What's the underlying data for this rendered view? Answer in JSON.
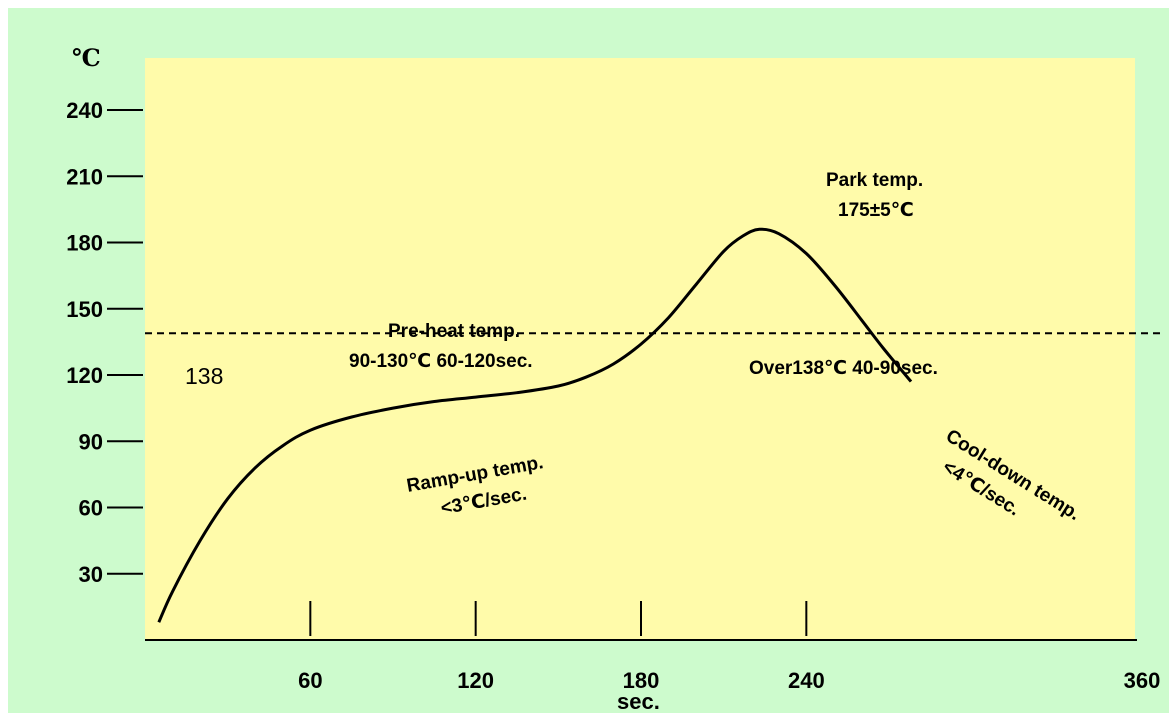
{
  "colors": {
    "page_background": "#cdfbcd",
    "plot_background": "#fffbaa",
    "curve": "#000000",
    "axis": "#000000"
  },
  "chart_data": {
    "type": "line",
    "y_unit_label": "℃",
    "xlabel": "sec.",
    "x_ticks": [
      60,
      120,
      180,
      240,
      360
    ],
    "y_ticks": [
      30,
      60,
      90,
      120,
      150,
      180,
      210,
      240
    ],
    "xlim": [
      0,
      360
    ],
    "ylim": [
      0,
      255
    ],
    "grid": false,
    "threshold_line": {
      "y": 138,
      "style": "dashed",
      "label": "138"
    },
    "series": [
      {
        "points": [
          [
            5,
            8
          ],
          [
            10,
            22
          ],
          [
            20,
            45
          ],
          [
            30,
            64
          ],
          [
            40,
            78
          ],
          [
            50,
            88
          ],
          [
            60,
            95
          ],
          [
            75,
            101
          ],
          [
            90,
            105
          ],
          [
            105,
            108
          ],
          [
            120,
            110
          ],
          [
            135,
            112
          ],
          [
            150,
            115
          ],
          [
            160,
            119
          ],
          [
            170,
            125
          ],
          [
            180,
            134
          ],
          [
            190,
            146
          ],
          [
            200,
            161
          ],
          [
            210,
            176
          ],
          [
            217,
            183
          ],
          [
            223,
            186
          ],
          [
            230,
            184
          ],
          [
            240,
            175
          ],
          [
            250,
            161
          ],
          [
            260,
            145
          ],
          [
            268,
            132
          ],
          [
            278,
            117
          ]
        ]
      }
    ],
    "annotations": {
      "preheat_title": "Pre-heat temp.",
      "preheat_detail": "90-130℃  60-120sec.",
      "over_label": "Over138℃  40-90sec.",
      "peak_title": "Park temp.",
      "peak_value": "175±5℃",
      "rampup_title": "Ramp-up temp.",
      "rampup_rate": "<3℃/sec.",
      "cooldown_title": "Cool-down temp.",
      "cooldown_rate": "<4℃/sec."
    }
  }
}
